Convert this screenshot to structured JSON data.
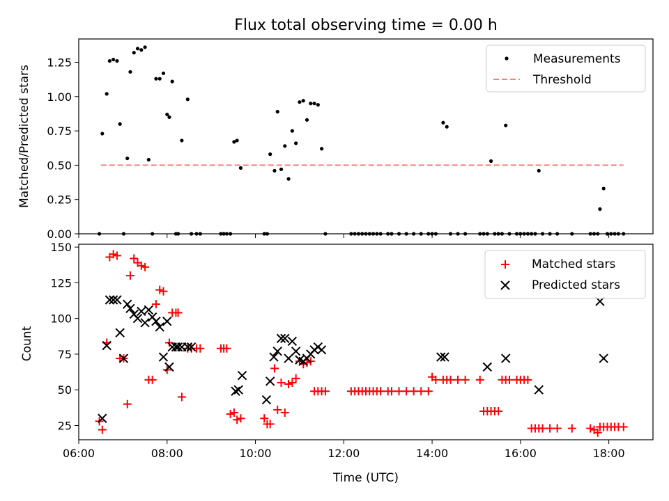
{
  "chart_data": [
    {
      "type": "scatter",
      "title": "Flux total observing time = 0.00 h",
      "xlabel": "",
      "ylabel": "Matched/Predicted stars",
      "xlim": [
        "06:00",
        "19:00"
      ],
      "ylim": [
        0,
        1.42
      ],
      "yticks": [
        "0.00",
        "0.25",
        "0.50",
        "0.75",
        "1.00",
        "1.25"
      ],
      "legend_position": "top-right",
      "threshold": {
        "name": "Threshold",
        "value": 0.5,
        "x_start": "06:30",
        "x_end": "18:20",
        "color": "#ff7f7f",
        "style": "dashed"
      },
      "series": [
        {
          "name": "Measurements",
          "marker": "dot",
          "color": "#000000",
          "x": [
            "06:28",
            "06:32",
            "06:38",
            "06:42",
            "06:47",
            "06:52",
            "06:56",
            "07:01",
            "07:06",
            "07:10",
            "07:15",
            "07:20",
            "07:25",
            "07:30",
            "07:35",
            "07:40",
            "07:45",
            "07:50",
            "07:55",
            "08:00",
            "08:03",
            "08:07",
            "08:12",
            "08:15",
            "08:20",
            "08:28",
            "08:33",
            "08:40",
            "08:45",
            "09:13",
            "09:17",
            "09:21",
            "09:26",
            "09:31",
            "09:35",
            "09:40",
            "10:12",
            "10:16",
            "10:20",
            "10:26",
            "10:30",
            "10:35",
            "10:40",
            "10:45",
            "10:50",
            "10:55",
            "11:00",
            "11:05",
            "11:10",
            "11:15",
            "11:20",
            "11:25",
            "11:30",
            "11:35",
            "12:10",
            "12:15",
            "12:20",
            "12:25",
            "12:30",
            "12:35",
            "12:40",
            "12:45",
            "12:50",
            "13:00",
            "13:05",
            "13:15",
            "13:25",
            "13:35",
            "13:45",
            "13:55",
            "14:00",
            "14:05",
            "14:15",
            "14:20",
            "14:25",
            "14:35",
            "14:45",
            "15:05",
            "15:10",
            "15:15",
            "15:20",
            "15:25",
            "15:30",
            "15:35",
            "15:40",
            "15:45",
            "15:55",
            "16:00",
            "16:05",
            "16:10",
            "16:15",
            "16:20",
            "16:25",
            "16:30",
            "16:40",
            "16:50",
            "17:10",
            "17:35",
            "17:40",
            "17:45",
            "17:48",
            "17:53",
            "17:58",
            "18:03",
            "18:08",
            "18:13",
            "18:20"
          ],
          "y": [
            0.0,
            0.73,
            1.02,
            1.26,
            1.27,
            1.26,
            0.8,
            0.0,
            0.55,
            1.18,
            1.32,
            1.35,
            1.34,
            1.36,
            0.54,
            0.0,
            1.13,
            1.13,
            1.17,
            0.87,
            0.85,
            1.11,
            0.0,
            0.0,
            0.68,
            0.98,
            0.0,
            0.0,
            0.0,
            0.0,
            0.0,
            0.0,
            0.0,
            0.67,
            0.68,
            0.48,
            0.0,
            0.0,
            0.58,
            0.46,
            0.89,
            0.47,
            0.64,
            0.4,
            0.75,
            0.66,
            0.96,
            0.97,
            0.83,
            0.95,
            0.95,
            0.94,
            0.62,
            0.0,
            0.0,
            0.0,
            0.0,
            0.0,
            0.0,
            0.0,
            0.0,
            0.0,
            0.0,
            0.0,
            0.0,
            0.0,
            0.0,
            0.0,
            0.0,
            0.0,
            0.0,
            0.0,
            0.81,
            0.78,
            0.0,
            0.0,
            0.0,
            0.0,
            0.0,
            0.0,
            0.53,
            0.0,
            0.0,
            0.0,
            0.79,
            0.0,
            0.0,
            0.0,
            0.0,
            0.0,
            0.0,
            0.0,
            0.46,
            0.0,
            0.0,
            0.0,
            0.0,
            0.0,
            0.0,
            0.0,
            0.18,
            0.33,
            0.0,
            0.0,
            0.0,
            0.0,
            0.0
          ]
        }
      ]
    },
    {
      "type": "scatter",
      "title": "",
      "xlabel": "Time (UTC)",
      "ylabel": "Count",
      "xlim": [
        "06:00",
        "19:00"
      ],
      "ylim": [
        15,
        152
      ],
      "yticks": [
        "25",
        "50",
        "75",
        "100",
        "125",
        "150"
      ],
      "xticks": [
        "06:00",
        "08:00",
        "10:00",
        "12:00",
        "14:00",
        "16:00",
        "18:00"
      ],
      "legend_position": "top-right",
      "series": [
        {
          "name": "Matched stars",
          "marker": "plus",
          "color": "#ff0000",
          "x": [
            "06:28",
            "06:32",
            "06:38",
            "06:42",
            "06:47",
            "06:52",
            "06:56",
            "07:01",
            "07:06",
            "07:10",
            "07:15",
            "07:20",
            "07:25",
            "07:30",
            "07:35",
            "07:40",
            "07:45",
            "07:50",
            "07:55",
            "08:00",
            "08:03",
            "08:07",
            "08:12",
            "08:15",
            "08:20",
            "08:28",
            "08:33",
            "08:40",
            "08:45",
            "09:13",
            "09:17",
            "09:21",
            "09:26",
            "09:31",
            "09:35",
            "09:40",
            "10:12",
            "10:16",
            "10:20",
            "10:26",
            "10:30",
            "10:35",
            "10:40",
            "10:45",
            "10:50",
            "10:55",
            "11:00",
            "11:05",
            "11:10",
            "11:15",
            "11:20",
            "11:25",
            "11:30",
            "11:35",
            "12:10",
            "12:15",
            "12:20",
            "12:25",
            "12:30",
            "12:35",
            "12:40",
            "12:45",
            "12:50",
            "13:00",
            "13:05",
            "13:15",
            "13:25",
            "13:35",
            "13:45",
            "13:55",
            "14:00",
            "14:05",
            "14:15",
            "14:20",
            "14:25",
            "14:35",
            "14:45",
            "15:05",
            "15:10",
            "15:15",
            "15:20",
            "15:25",
            "15:30",
            "15:35",
            "15:40",
            "15:45",
            "15:55",
            "16:00",
            "16:05",
            "16:10",
            "16:15",
            "16:20",
            "16:25",
            "16:30",
            "16:40",
            "16:50",
            "17:10",
            "17:35",
            "17:40",
            "17:45",
            "17:48",
            "17:53",
            "17:58",
            "18:03",
            "18:08",
            "18:13",
            "18:20"
          ],
          "y": [
            28,
            22,
            83,
            143,
            145,
            144,
            72,
            72,
            40,
            130,
            142,
            139,
            137,
            136,
            57,
            57,
            110,
            120,
            119,
            64,
            83,
            104,
            104,
            104,
            45,
            79,
            79,
            79,
            79,
            79,
            79,
            79,
            33,
            34,
            29,
            30,
            30,
            26,
            26,
            65,
            36,
            55,
            34,
            54,
            55,
            58,
            70,
            68,
            69,
            70,
            49,
            49,
            49,
            49,
            49,
            49,
            49,
            49,
            49,
            49,
            49,
            49,
            49,
            49,
            49,
            49,
            49,
            49,
            49,
            49,
            59,
            57,
            57,
            57,
            57,
            57,
            57,
            57,
            35,
            35,
            35,
            35,
            35,
            57,
            57,
            57,
            57,
            57,
            57,
            57,
            23,
            23,
            23,
            23,
            23,
            23,
            23,
            23,
            22,
            20,
            24,
            24,
            24,
            24,
            24,
            24,
            24
          ]
        },
        {
          "name": "Predicted stars",
          "marker": "x",
          "color": "#000000",
          "x": [
            "06:32",
            "06:38",
            "06:42",
            "06:47",
            "06:52",
            "06:56",
            "07:01",
            "07:06",
            "07:10",
            "07:15",
            "07:20",
            "07:25",
            "07:30",
            "07:35",
            "07:40",
            "07:45",
            "07:50",
            "07:55",
            "08:00",
            "08:03",
            "08:07",
            "08:12",
            "08:15",
            "08:20",
            "08:28",
            "08:33",
            "09:33",
            "09:37",
            "09:42",
            "10:15",
            "10:20",
            "10:25",
            "10:30",
            "10:35",
            "10:40",
            "10:45",
            "10:50",
            "10:55",
            "11:00",
            "11:05",
            "11:10",
            "11:15",
            "11:20",
            "11:25",
            "11:30",
            "14:12",
            "14:17",
            "15:15",
            "15:40",
            "16:25",
            "17:48",
            "17:53"
          ],
          "y": [
            30,
            81,
            113,
            113,
            113,
            90,
            72,
            110,
            107,
            103,
            100,
            105,
            97,
            106,
            101,
            98,
            94,
            73,
            98,
            66,
            80,
            80,
            80,
            80,
            80,
            80,
            49,
            50,
            60,
            43,
            56,
            73,
            77,
            86,
            86,
            72,
            84,
            77,
            71,
            70,
            72,
            75,
            78,
            80,
            78,
            73,
            73,
            66,
            72,
            50,
            112,
            72
          ]
        }
      ]
    }
  ]
}
